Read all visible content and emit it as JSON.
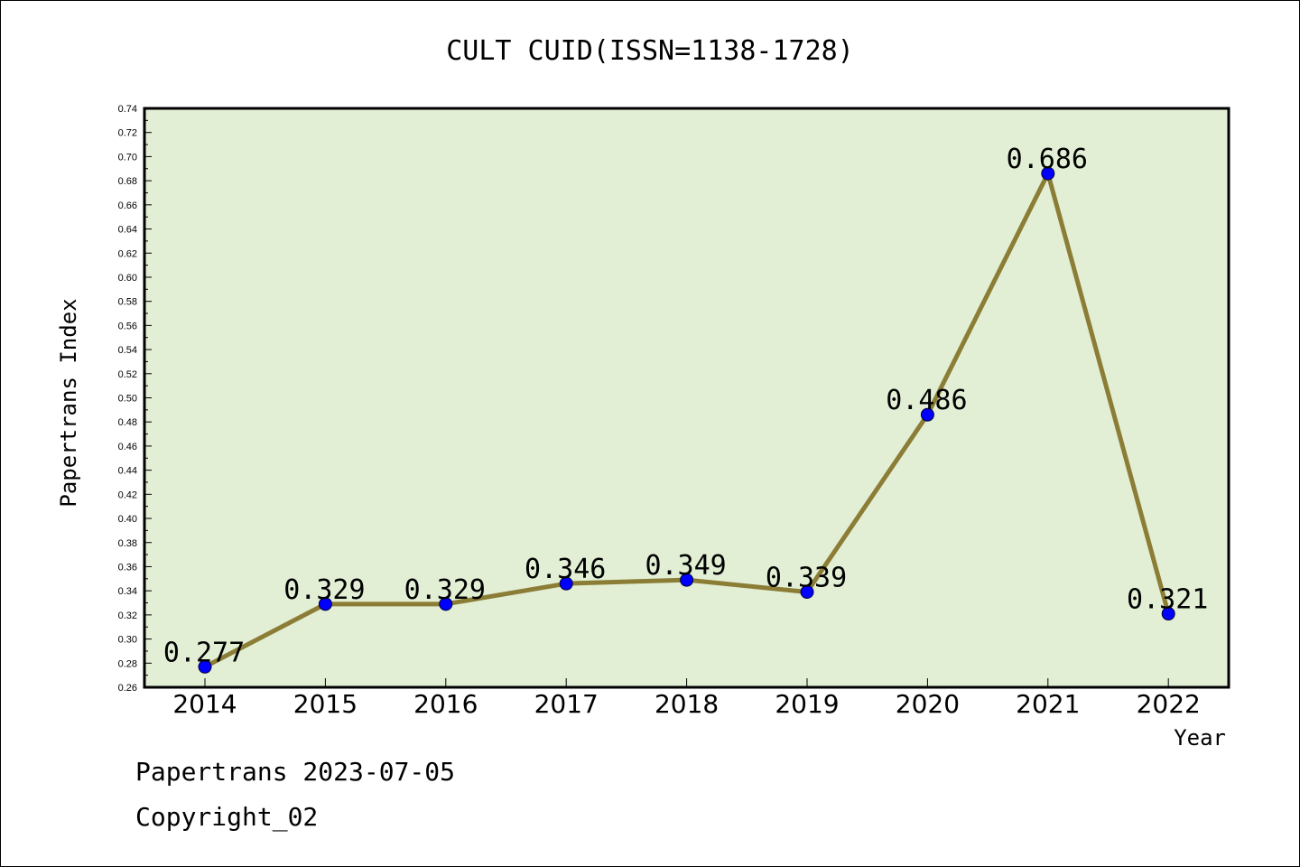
{
  "chart_data": {
    "type": "line",
    "title": "CULT CUID(ISSN=1138-1728)",
    "xlabel": "Year",
    "ylabel": "Papertrans Index",
    "categories": [
      "2014",
      "2015",
      "2016",
      "2017",
      "2018",
      "2019",
      "2020",
      "2021",
      "2022"
    ],
    "series": [
      {
        "values": [
          0.277,
          0.329,
          0.329,
          0.346,
          0.349,
          0.339,
          0.486,
          0.686,
          0.321
        ]
      }
    ],
    "data_labels": [
      "0.277",
      "0.329",
      "0.329",
      "0.346",
      "0.349",
      "0.339",
      "0.486",
      "0.686",
      "0.321"
    ],
    "ylim": [
      0.26,
      0.74
    ],
    "yticks": [
      "0.26",
      "0.28",
      "0.30",
      "0.32",
      "0.34",
      "0.36",
      "0.38",
      "0.40",
      "0.42",
      "0.44",
      "0.46",
      "0.48",
      "0.50",
      "0.52",
      "0.54",
      "0.56",
      "0.58",
      "0.60",
      "0.62",
      "0.64",
      "0.66",
      "0.68",
      "0.70",
      "0.72",
      "0.74"
    ],
    "grid": false,
    "colors": {
      "plot_background": "#e2efd5",
      "line": "#8b7d35",
      "marker": "#0000ff"
    }
  },
  "footer": {
    "line1": "Papertrans 2023-07-05",
    "line2": "Copyright_02"
  }
}
